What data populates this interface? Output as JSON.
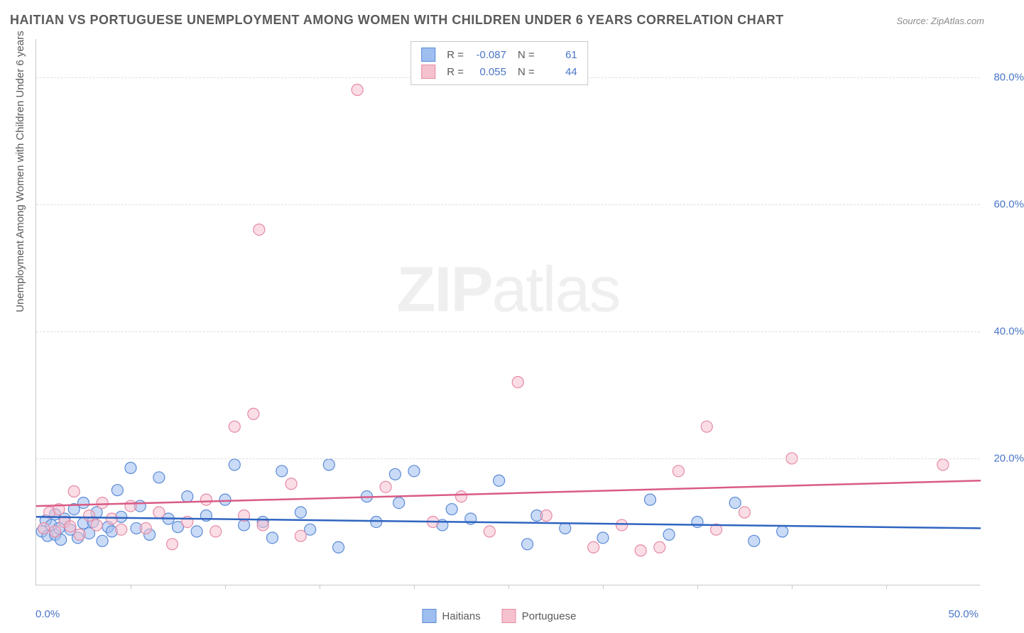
{
  "title": "HAITIAN VS PORTUGUESE UNEMPLOYMENT AMONG WOMEN WITH CHILDREN UNDER 6 YEARS CORRELATION CHART",
  "source": "Source: ZipAtlas.com",
  "y_axis_title": "Unemployment Among Women with Children Under 6 years",
  "watermark_bold": "ZIP",
  "watermark_rest": "atlas",
  "x_origin": "0.0%",
  "x_end": "50.0%",
  "bottom_legend": {
    "series1": "Haitians",
    "series2": "Portuguese"
  },
  "stats_legend": {
    "r_label": "R =",
    "n_label": "N =",
    "series": [
      {
        "r": "-0.087",
        "n": "61"
      },
      {
        "r": "0.055",
        "n": "44"
      }
    ]
  },
  "chart": {
    "type": "scatter",
    "xlim": [
      0,
      50
    ],
    "ylim": [
      0,
      86
    ],
    "y_ticks": [
      20,
      40,
      60,
      80
    ],
    "y_tick_labels": [
      "20.0%",
      "40.0%",
      "60.0%",
      "80.0%"
    ],
    "x_tick_positions": [
      5,
      10,
      15,
      20,
      25,
      30,
      35,
      40,
      45
    ],
    "background_color": "#ffffff",
    "grid_color": "#dedede",
    "axis_color": "#c8c8c8",
    "tick_label_color": "#4a76c7",
    "marker_radius": 8,
    "marker_opacity": 0.55,
    "series": [
      {
        "name": "Haitians",
        "fill": "#9ebef0",
        "stroke": "#5a8ad6",
        "line_color": "#2f64c0",
        "trend": {
          "y_at_x0": 10.8,
          "y_at_x50": 9.0
        },
        "points": [
          [
            0.3,
            8.5
          ],
          [
            0.5,
            10.2
          ],
          [
            0.6,
            7.8
          ],
          [
            0.8,
            9.5
          ],
          [
            1.0,
            11.2
          ],
          [
            1.0,
            8.0
          ],
          [
            1.2,
            9.0
          ],
          [
            1.3,
            7.2
          ],
          [
            1.5,
            10.5
          ],
          [
            1.8,
            8.8
          ],
          [
            2.0,
            12.0
          ],
          [
            2.2,
            7.5
          ],
          [
            2.5,
            9.8
          ],
          [
            2.5,
            13.0
          ],
          [
            2.8,
            8.2
          ],
          [
            3.0,
            10.0
          ],
          [
            3.2,
            11.5
          ],
          [
            3.5,
            7.0
          ],
          [
            3.8,
            9.2
          ],
          [
            4.0,
            8.5
          ],
          [
            4.3,
            15.0
          ],
          [
            4.5,
            10.8
          ],
          [
            5.0,
            18.5
          ],
          [
            5.3,
            9.0
          ],
          [
            5.5,
            12.5
          ],
          [
            6.0,
            8.0
          ],
          [
            6.5,
            17.0
          ],
          [
            7.0,
            10.5
          ],
          [
            7.5,
            9.2
          ],
          [
            8.0,
            14.0
          ],
          [
            8.5,
            8.5
          ],
          [
            9.0,
            11.0
          ],
          [
            10.0,
            13.5
          ],
          [
            10.5,
            19.0
          ],
          [
            11.0,
            9.5
          ],
          [
            12.0,
            10.0
          ],
          [
            12.5,
            7.5
          ],
          [
            13.0,
            18.0
          ],
          [
            14.0,
            11.5
          ],
          [
            14.5,
            8.8
          ],
          [
            15.5,
            19.0
          ],
          [
            16.0,
            6.0
          ],
          [
            17.5,
            14.0
          ],
          [
            18.0,
            10.0
          ],
          [
            19.0,
            17.5
          ],
          [
            19.2,
            13.0
          ],
          [
            20.0,
            18.0
          ],
          [
            21.5,
            9.5
          ],
          [
            22.0,
            12.0
          ],
          [
            23.0,
            10.5
          ],
          [
            24.5,
            16.5
          ],
          [
            26.0,
            6.5
          ],
          [
            26.5,
            11.0
          ],
          [
            28.0,
            9.0
          ],
          [
            30.0,
            7.5
          ],
          [
            32.5,
            13.5
          ],
          [
            33.5,
            8.0
          ],
          [
            35.0,
            10.0
          ],
          [
            37.0,
            13.0
          ],
          [
            38.0,
            7.0
          ],
          [
            39.5,
            8.5
          ]
        ]
      },
      {
        "name": "Portuguese",
        "fill": "#f6c1cf",
        "stroke": "#e68aa5",
        "line_color": "#d95b86",
        "trend": {
          "y_at_x0": 12.5,
          "y_at_x50": 16.5
        },
        "points": [
          [
            0.4,
            9.0
          ],
          [
            0.7,
            11.5
          ],
          [
            1.0,
            8.5
          ],
          [
            1.2,
            12.0
          ],
          [
            1.5,
            10.0
          ],
          [
            1.8,
            9.3
          ],
          [
            2.0,
            14.8
          ],
          [
            2.3,
            8.0
          ],
          [
            2.8,
            11.0
          ],
          [
            3.2,
            9.5
          ],
          [
            3.5,
            13.0
          ],
          [
            4.0,
            10.5
          ],
          [
            4.5,
            8.8
          ],
          [
            5.0,
            12.5
          ],
          [
            5.8,
            9.0
          ],
          [
            6.5,
            11.5
          ],
          [
            7.2,
            6.5
          ],
          [
            8.0,
            10.0
          ],
          [
            9.0,
            13.5
          ],
          [
            9.5,
            8.5
          ],
          [
            10.5,
            25.0
          ],
          [
            11.0,
            11.0
          ],
          [
            11.5,
            27.0
          ],
          [
            12.0,
            9.5
          ],
          [
            13.5,
            16.0
          ],
          [
            14.0,
            7.8
          ],
          [
            17.0,
            78.0
          ],
          [
            18.5,
            15.5
          ],
          [
            21.0,
            10.0
          ],
          [
            22.5,
            14.0
          ],
          [
            24.0,
            8.5
          ],
          [
            25.5,
            32.0
          ],
          [
            27.0,
            11.0
          ],
          [
            29.5,
            6.0
          ],
          [
            31.0,
            9.5
          ],
          [
            32.0,
            5.5
          ],
          [
            34.0,
            18.0
          ],
          [
            35.5,
            25.0
          ],
          [
            36.0,
            8.8
          ],
          [
            37.5,
            11.5
          ],
          [
            40.0,
            20.0
          ],
          [
            11.8,
            56.0
          ],
          [
            33.0,
            6.0
          ],
          [
            48.0,
            19.0
          ]
        ]
      }
    ]
  }
}
